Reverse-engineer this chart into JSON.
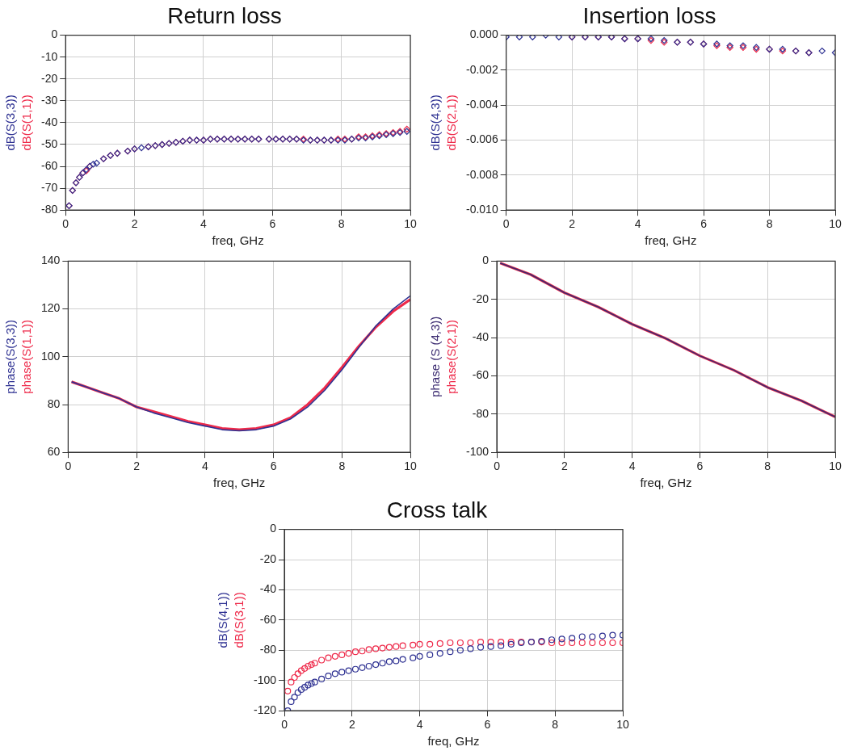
{
  "chart_data": [
    {
      "type": "scatter",
      "title": "Return loss",
      "xlabel": "freq, GHz",
      "marker": "diamond",
      "grid": true,
      "xlim": [
        0,
        10
      ],
      "xticks": [
        0,
        2,
        4,
        6,
        8,
        10
      ],
      "ylim": [
        -80,
        0
      ],
      "yticks": [
        -80,
        -70,
        -60,
        -50,
        -40,
        -30,
        -20,
        -10,
        0
      ],
      "x": [
        0.1,
        0.2,
        0.3,
        0.4,
        0.5,
        0.6,
        0.7,
        0.8,
        0.9,
        1.1,
        1.3,
        1.5,
        1.8,
        2.0,
        2.2,
        2.4,
        2.6,
        2.8,
        3.0,
        3.2,
        3.4,
        3.6,
        3.8,
        4.0,
        4.2,
        4.4,
        4.6,
        4.8,
        5.0,
        5.2,
        5.4,
        5.6,
        5.9,
        6.1,
        6.3,
        6.5,
        6.7,
        6.9,
        7.1,
        7.3,
        7.5,
        7.7,
        7.9,
        8.1,
        8.3,
        8.5,
        8.7,
        8.9,
        9.1,
        9.3,
        9.5,
        9.7,
        9.9
      ],
      "series": [
        {
          "name": "dB(S(1,1))",
          "color": "#ee2a4a",
          "values": [
            -78,
            -71,
            -67.5,
            -65,
            -63,
            -62,
            -60,
            null,
            null,
            -56.5,
            -55,
            -54,
            -53,
            -52,
            null,
            -51,
            -50.5,
            -50,
            -49.5,
            -49,
            -48.5,
            -48,
            -48,
            -48,
            -47.5,
            -47.5,
            -47.5,
            -47.5,
            -47.5,
            -47.5,
            -47.5,
            -47.5,
            -47.5,
            -47.5,
            -47.5,
            -47.5,
            -47.5,
            -47.5,
            -48,
            -48,
            -48,
            -48,
            -47.5,
            -47.5,
            -47.5,
            -46.5,
            -46.5,
            -46,
            -45.5,
            -45,
            -44.5,
            -44,
            -43
          ]
        },
        {
          "name": "dB(S(3,3))",
          "color": "#2e3192",
          "values": [
            -78,
            -71,
            -67.5,
            -65,
            -63,
            -61.5,
            -60,
            -59,
            -58.5,
            -56.5,
            -55,
            -54,
            -53,
            -52,
            -51.5,
            -51,
            -50.5,
            -50,
            -49.5,
            -49,
            -48.5,
            -48,
            -48,
            -48,
            -47.5,
            -47.5,
            -47.5,
            -47.5,
            -47.5,
            -47.5,
            -47.5,
            -47.5,
            -47.5,
            -47.5,
            -47.5,
            -47.5,
            -47.5,
            -48,
            -48,
            -48,
            -48,
            -48,
            -48,
            -48,
            -47.5,
            -47,
            -47,
            -46.5,
            -46,
            -45.5,
            -45,
            -44.5,
            -44
          ]
        }
      ]
    },
    {
      "type": "scatter",
      "title": "Insertion loss",
      "xlabel": "freq, GHz",
      "marker": "diamond",
      "grid": true,
      "xlim": [
        0,
        10
      ],
      "xticks": [
        0,
        2,
        4,
        6,
        8,
        10
      ],
      "ylim": [
        -0.01,
        0
      ],
      "yticks": [
        {
          "value": -0.01,
          "label": "-0.010"
        },
        -0.008,
        -0.006,
        -0.004,
        -0.002,
        {
          "value": 0,
          "label": "0.000"
        }
      ],
      "series": [
        {
          "name": "dB(S(2,1))",
          "color": "#ee2a4a",
          "x": [
            2.0,
            2.4,
            2.8,
            3.2,
            3.6,
            4.0,
            4.4,
            4.8,
            5.2,
            5.6,
            6.0,
            6.4,
            6.8,
            7.2,
            7.6,
            8.0,
            8.4,
            8.8,
            9.2
          ],
          "values": [
            -0.0001,
            -0.0001,
            -0.0001,
            -0.0001,
            -0.0002,
            -0.0002,
            -0.0003,
            -0.0004,
            -0.0004,
            -0.0004,
            -0.0005,
            -0.0006,
            -0.0007,
            -0.0007,
            -0.0008,
            -0.0008,
            -0.0009,
            -0.0009,
            -0.001
          ]
        },
        {
          "name": "dB(S(4,3))",
          "color": "#2e3192",
          "x": [
            0,
            0.4,
            0.8,
            1.2,
            1.6,
            2.0,
            2.4,
            2.8,
            3.2,
            3.6,
            4.0,
            4.4,
            4.8,
            5.2,
            5.6,
            6.0,
            6.4,
            6.8,
            7.2,
            7.6,
            8.0,
            8.4,
            8.8,
            9.2,
            9.6,
            10.0
          ],
          "values": [
            -0.0001,
            -0.0001,
            -0.0001,
            0,
            -0.0001,
            -0.0001,
            -0.0001,
            -0.0001,
            -0.0001,
            -0.0002,
            -0.0002,
            -0.0002,
            -0.0003,
            -0.0004,
            -0.0004,
            -0.0005,
            -0.0005,
            -0.0006,
            -0.0006,
            -0.0007,
            -0.0008,
            -0.0008,
            -0.0009,
            -0.001,
            -0.0009,
            -0.001
          ]
        }
      ]
    },
    {
      "type": "line",
      "xlabel": "freq, GHz",
      "marker": "none",
      "grid": true,
      "xlim": [
        0,
        10
      ],
      "xticks": [
        0,
        2,
        4,
        6,
        8,
        10
      ],
      "ylim": [
        60,
        140
      ],
      "yticks": [
        60,
        80,
        100,
        120,
        140
      ],
      "x": [
        0.1,
        0.5,
        1.0,
        1.5,
        2.0,
        2.5,
        3.0,
        3.5,
        4.0,
        4.5,
        5.0,
        5.5,
        6.0,
        6.5,
        7.0,
        7.5,
        8.0,
        8.5,
        9.0,
        9.5,
        10.0
      ],
      "series": [
        {
          "name": "phase(S(1,1))",
          "color": "#ee2a4a",
          "values": [
            89.5,
            87.5,
            85,
            82.5,
            79,
            77,
            75,
            73,
            71.5,
            70,
            69.5,
            70,
            71.5,
            74.5,
            80,
            87,
            95.5,
            104.5,
            112.5,
            119,
            124
          ]
        },
        {
          "name": "phase(S(3,3))",
          "color": "#2e3192",
          "values": [
            89.5,
            87.5,
            85,
            82.5,
            79,
            76.5,
            74.5,
            72.5,
            71,
            69.5,
            69,
            69.5,
            71,
            74,
            79,
            86,
            94.5,
            104,
            113,
            120,
            125.5
          ]
        }
      ]
    },
    {
      "type": "line",
      "xlabel": "freq, GHz",
      "marker": "none",
      "grid": true,
      "xlim": [
        0,
        10
      ],
      "xticks": [
        0,
        2,
        4,
        6,
        8,
        10
      ],
      "ylim": [
        -100,
        0
      ],
      "yticks": [
        -100,
        -80,
        -60,
        -40,
        -20,
        0
      ],
      "x": [
        0.1,
        1,
        2,
        3,
        4,
        5,
        6,
        7,
        8,
        9,
        10
      ],
      "series": [
        {
          "name": "phase(S(2,1))",
          "color": "#ee2a4a",
          "values": [
            -1,
            -7,
            -16.5,
            -24,
            -33,
            -40.5,
            -49.5,
            -57,
            -66,
            -73,
            -81.5
          ]
        },
        {
          "name": "phase (S (4,3))",
          "color": "#3a2a70",
          "values": [
            -1,
            -7,
            -16.5,
            -24,
            -33,
            -40.5,
            -49.5,
            -57,
            -66,
            -73,
            -81.5
          ]
        }
      ]
    },
    {
      "type": "scatter",
      "title": "Cross talk",
      "xlabel": "freq, GHz",
      "marker": "circle",
      "grid": true,
      "xlim": [
        0,
        10
      ],
      "xticks": [
        0,
        2,
        4,
        6,
        8,
        10
      ],
      "ylim": [
        -120,
        0
      ],
      "yticks": [
        -120,
        -100,
        -80,
        -60,
        -40,
        -20,
        0
      ],
      "x": [
        0.1,
        0.2,
        0.3,
        0.4,
        0.5,
        0.6,
        0.7,
        0.8,
        0.9,
        1.1,
        1.3,
        1.5,
        1.7,
        1.9,
        2.1,
        2.3,
        2.5,
        2.7,
        2.9,
        3.1,
        3.3,
        3.5,
        3.8,
        4.0,
        4.3,
        4.6,
        4.9,
        5.2,
        5.5,
        5.8,
        6.1,
        6.4,
        6.7,
        7.0,
        7.3,
        7.6,
        7.9,
        8.2,
        8.5,
        8.8,
        9.1,
        9.4,
        9.7,
        10
      ],
      "series": [
        {
          "name": "dB(S(3,1))",
          "color": "#ee2a4a",
          "values": [
            -107,
            -101,
            -98,
            -95.5,
            -93.5,
            -92,
            -90.5,
            -89.5,
            -88.5,
            -86.5,
            -85,
            -84,
            -83,
            -82,
            -81,
            -80.5,
            -79.5,
            -79,
            -78.5,
            -78,
            -77.5,
            -77,
            -76.5,
            -76,
            -76,
            -75.5,
            -75,
            -75,
            -75,
            -74.5,
            -74.5,
            -74.5,
            -74.5,
            -74.5,
            -74.5,
            -74.5,
            -75,
            -75,
            -75,
            -75,
            -75,
            -75,
            -75,
            -75
          ]
        },
        {
          "name": "dB(S(4,1))",
          "color": "#2e3192",
          "values": [
            -120,
            -114,
            -111,
            -108,
            -106,
            -104.5,
            -103,
            -102,
            -101,
            -99,
            -97,
            -95.5,
            -94.5,
            -93.5,
            -92.5,
            -91.5,
            -90.5,
            -89.5,
            -88.5,
            -87.5,
            -87,
            -86,
            -85,
            -84,
            -83,
            -82,
            -81,
            -80,
            -79,
            -78,
            -77.5,
            -77,
            -76,
            -75,
            -74.5,
            -74,
            -73,
            -72.5,
            -72,
            -71,
            -71,
            -70.5,
            -70,
            -70
          ]
        }
      ]
    }
  ]
}
